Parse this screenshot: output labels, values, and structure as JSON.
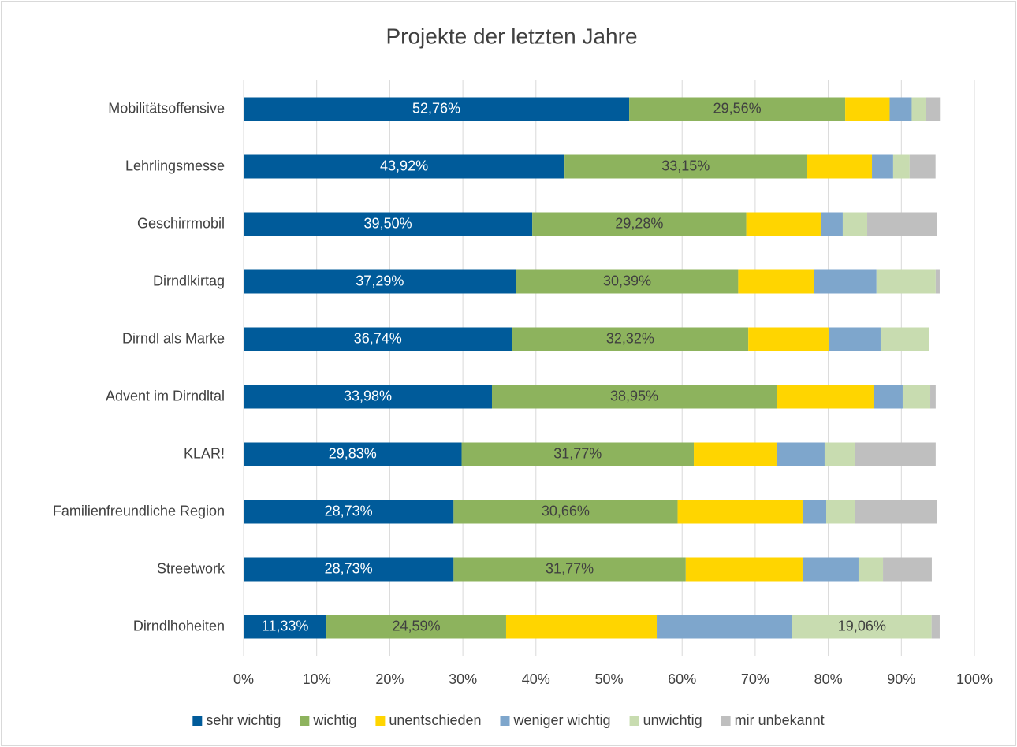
{
  "chart_data": {
    "type": "stacked_bar_horizontal",
    "title": "Projekte der letzten Jahre",
    "categories": [
      "Mobilitätsoffensive",
      "Lehrlingsmesse",
      "Geschirrmobil",
      "Dirndlkirtag",
      "Dirndl als Marke",
      "Advent im Dirndltal",
      "KLAR!",
      "Familienfreundliche Region",
      "Streetwork",
      "Dirndlhoheiten"
    ],
    "series": [
      {
        "name": "sehr wichtig",
        "color": "#005b9a",
        "values": [
          52.76,
          43.92,
          39.5,
          37.29,
          36.74,
          33.98,
          29.83,
          28.73,
          28.73,
          11.33
        ],
        "value_labels": [
          "52,76%",
          "43,92%",
          "39,50%",
          "37,29%",
          "36,74%",
          "33,98%",
          "29,83%",
          "28,73%",
          "28,73%",
          "11,33%"
        ]
      },
      {
        "name": "wichtig",
        "color": "#8db35d",
        "values": [
          29.56,
          33.15,
          29.28,
          30.39,
          32.32,
          38.95,
          31.77,
          30.66,
          31.77,
          24.59
        ],
        "value_labels": [
          "29,56%",
          "33,15%",
          "29,28%",
          "30,39%",
          "32,32%",
          "38,95%",
          "31,77%",
          "30,66%",
          "31,77%",
          "24,59%"
        ]
      },
      {
        "name": "unentschieden",
        "color": "#ffd500",
        "values": [
          6.08,
          8.91,
          10.18,
          10.42,
          10.98,
          13.26,
          11.32,
          17.09,
          15.98,
          20.61
        ]
      },
      {
        "name": "weniger wichtig",
        "color": "#7ea6cc",
        "values": [
          3.02,
          2.9,
          3.02,
          8.5,
          7.12,
          3.99,
          6.58,
          3.24,
          7.66,
          18.55
        ]
      },
      {
        "name": "unwichtig",
        "color": "#c8dcb0",
        "values": [
          1.93,
          2.25,
          3.35,
          8.1,
          6.69,
          3.78,
          4.2,
          3.99,
          3.35,
          19.06
        ],
        "value_labels": [
          null,
          null,
          null,
          null,
          null,
          null,
          null,
          null,
          null,
          "19,06%"
        ]
      },
      {
        "name": "mir unbekannt",
        "color": "#bfbfbf",
        "values": [
          1.93,
          3.55,
          9.6,
          0.55,
          0,
          0.74,
          11.0,
          11.22,
          6.68,
          1.11
        ]
      }
    ],
    "xlim": [
      0,
      100
    ],
    "xticks": [
      {
        "value": 0,
        "label": "0%"
      },
      {
        "value": 10,
        "label": "10%"
      },
      {
        "value": 20,
        "label": "20%"
      },
      {
        "value": 30,
        "label": "30%"
      },
      {
        "value": 40,
        "label": "40%"
      },
      {
        "value": 50,
        "label": "50%"
      },
      {
        "value": 60,
        "label": "60%"
      },
      {
        "value": 70,
        "label": "70%"
      },
      {
        "value": 80,
        "label": "80%"
      },
      {
        "value": 90,
        "label": "90%"
      },
      {
        "value": 100,
        "label": "100%"
      }
    ],
    "grid": true,
    "legend": "bottom"
  }
}
